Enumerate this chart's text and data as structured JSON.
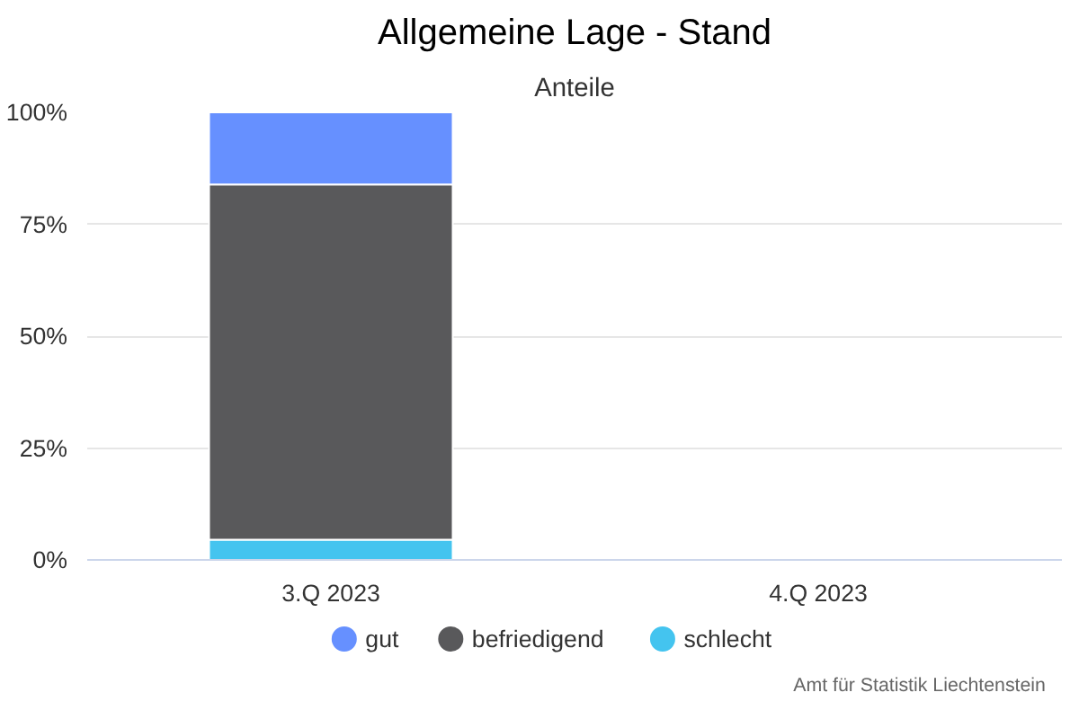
{
  "chart_data": {
    "type": "bar",
    "title": "Allgemeine Lage - Stand",
    "subtitle": "Anteile",
    "categories": [
      "3.Q 2023",
      "4.Q 2023"
    ],
    "stacked": true,
    "series": [
      {
        "name": "schlecht",
        "color": "#44c4ef",
        "values": [
          4.5,
          null
        ]
      },
      {
        "name": "befriedigend",
        "color": "#59595b",
        "values": [
          79.4,
          null
        ]
      },
      {
        "name": "gut",
        "color": "#6690ff",
        "values": [
          16.1,
          null
        ]
      }
    ],
    "ylim": [
      0,
      100
    ],
    "yticks": [
      {
        "value": 0,
        "label": "0%"
      },
      {
        "value": 25,
        "label": "25%"
      },
      {
        "value": 50,
        "label": "50%"
      },
      {
        "value": 75,
        "label": "75%"
      },
      {
        "value": 100,
        "label": "100%"
      }
    ],
    "grid": "y",
    "legend": "bottom",
    "annotations": [
      "Amt für Statistik Liechtenstein"
    ]
  }
}
